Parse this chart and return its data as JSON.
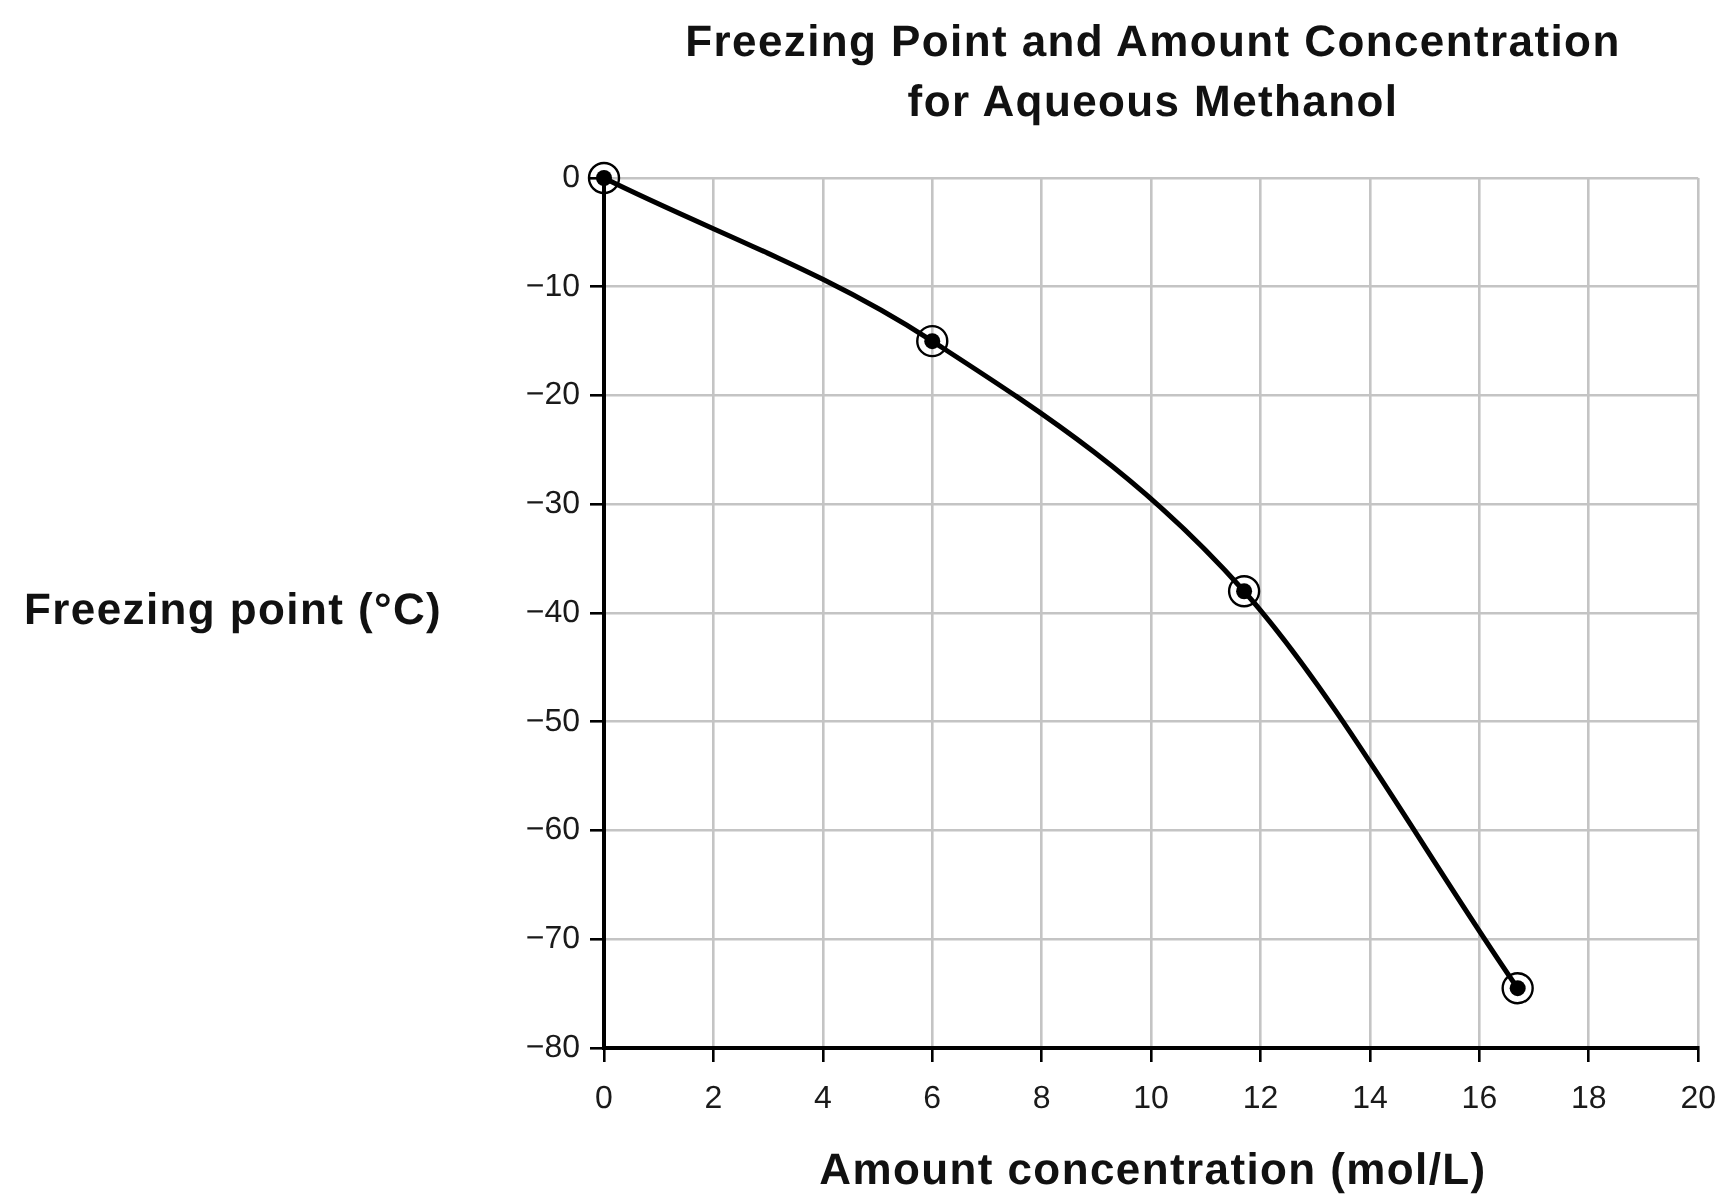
{
  "chart_data": {
    "type": "line",
    "title": "Freezing Point and Amount Concentration for Aqueous Methanol",
    "xlabel": "Amount concentration (mol/L)",
    "ylabel": "Freezing point (°C)",
    "x": [
      0,
      6,
      11.7,
      16.7
    ],
    "series": [
      {
        "color": "#000000",
        "values": [
          0,
          -15,
          -38,
          -74.5
        ]
      }
    ],
    "xlim": [
      0,
      20
    ],
    "ylim": [
      -80,
      0
    ],
    "xticks": [
      0,
      2,
      4,
      6,
      8,
      10,
      12,
      14,
      16,
      18,
      20
    ],
    "yticks": [
      0,
      {
        "value": -10,
        "label": "−10"
      },
      {
        "value": -20,
        "label": "−20"
      },
      {
        "value": -30,
        "label": "−30"
      },
      {
        "value": -40,
        "label": "−40"
      },
      {
        "value": -50,
        "label": "−50"
      },
      {
        "value": -60,
        "label": "−60"
      },
      {
        "value": -70,
        "label": "−70"
      },
      {
        "value": -80,
        "label": "−80"
      }
    ],
    "grid": true,
    "marker": "circle",
    "line_style": "solid"
  }
}
